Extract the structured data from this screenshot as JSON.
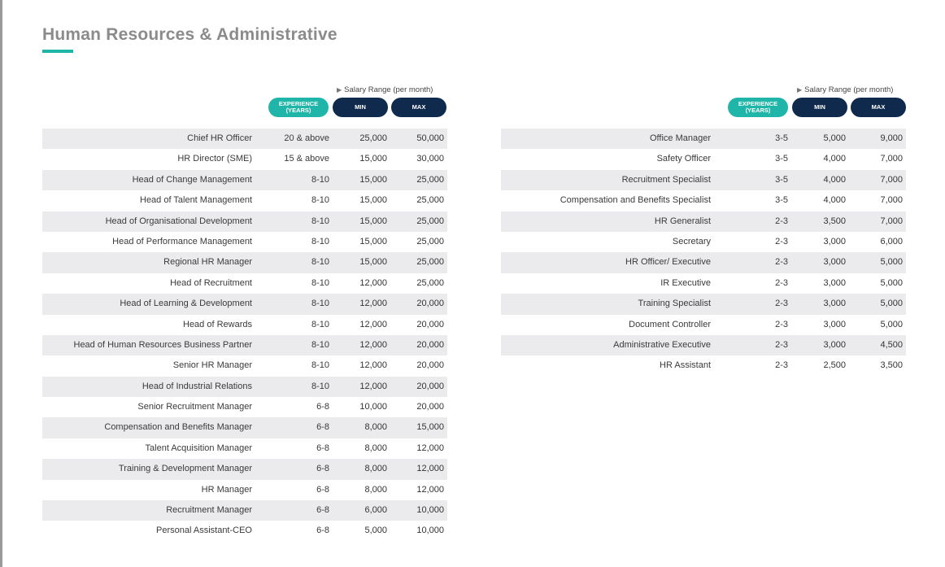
{
  "header": {
    "title": "Human Resources & Administrative"
  },
  "column_headers": {
    "salary_range": "Salary Range (per month)",
    "experience_line1": "EXPERIENCE",
    "experience_line2": "(YEARS)",
    "min": "MIN",
    "max": "MAX"
  },
  "colors": {
    "teal_accent": "#1fb5a8",
    "navy": "#102a4e",
    "row_shade": "#ebebed",
    "title_gray": "#8b8b8b"
  },
  "left_table": [
    {
      "role": "Chief HR Officer",
      "exp": "20 & above",
      "min": "25,000",
      "max": "50,000"
    },
    {
      "role": "HR Director (SME)",
      "exp": "15 & above",
      "min": "15,000",
      "max": "30,000"
    },
    {
      "role": "Head of Change Management",
      "exp": "8-10",
      "min": "15,000",
      "max": "25,000"
    },
    {
      "role": "Head of Talent Management",
      "exp": "8-10",
      "min": "15,000",
      "max": "25,000"
    },
    {
      "role": "Head of Organisational Development",
      "exp": "8-10",
      "min": "15,000",
      "max": "25,000"
    },
    {
      "role": "Head of Performance Management",
      "exp": "8-10",
      "min": "15,000",
      "max": "25,000"
    },
    {
      "role": "Regional HR Manager",
      "exp": "8-10",
      "min": "15,000",
      "max": "25,000"
    },
    {
      "role": "Head of Recruitment",
      "exp": "8-10",
      "min": "12,000",
      "max": "25,000"
    },
    {
      "role": "Head of Learning & Development",
      "exp": "8-10",
      "min": "12,000",
      "max": "20,000"
    },
    {
      "role": "Head of Rewards",
      "exp": "8-10",
      "min": "12,000",
      "max": "20,000"
    },
    {
      "role": "Head of Human Resources Business Partner",
      "exp": "8-10",
      "min": "12,000",
      "max": "20,000"
    },
    {
      "role": "Senior HR Manager",
      "exp": "8-10",
      "min": "12,000",
      "max": "20,000"
    },
    {
      "role": "Head of Industrial Relations",
      "exp": "8-10",
      "min": "12,000",
      "max": "20,000"
    },
    {
      "role": "Senior Recruitment Manager",
      "exp": "6-8",
      "min": "10,000",
      "max": "20,000"
    },
    {
      "role": "Compensation and Benefits Manager",
      "exp": "6-8",
      "min": "8,000",
      "max": "15,000"
    },
    {
      "role": "Talent Acquisition Manager",
      "exp": "6-8",
      "min": "8,000",
      "max": "12,000"
    },
    {
      "role": "Training & Development Manager",
      "exp": "6-8",
      "min": "8,000",
      "max": "12,000"
    },
    {
      "role": "HR Manager",
      "exp": "6-8",
      "min": "8,000",
      "max": "12,000"
    },
    {
      "role": "Recruitment Manager",
      "exp": "6-8",
      "min": "6,000",
      "max": "10,000"
    },
    {
      "role": "Personal Assistant-CEO",
      "exp": "6-8",
      "min": "5,000",
      "max": "10,000"
    }
  ],
  "right_table": [
    {
      "role": "Office Manager",
      "exp": "3-5",
      "min": "5,000",
      "max": "9,000"
    },
    {
      "role": "Safety Officer",
      "exp": "3-5",
      "min": "4,000",
      "max": "7,000"
    },
    {
      "role": "Recruitment Specialist",
      "exp": "3-5",
      "min": "4,000",
      "max": "7,000"
    },
    {
      "role": "Compensation and Benefits Specialist",
      "exp": "3-5",
      "min": "4,000",
      "max": "7,000"
    },
    {
      "role": "HR Generalist",
      "exp": "2-3",
      "min": "3,500",
      "max": "7,000"
    },
    {
      "role": "Secretary",
      "exp": "2-3",
      "min": "3,000",
      "max": "6,000"
    },
    {
      "role": "HR Officer/ Executive",
      "exp": "2-3",
      "min": "3,000",
      "max": "5,000"
    },
    {
      "role": "IR Executive",
      "exp": "2-3",
      "min": "3,000",
      "max": "5,000"
    },
    {
      "role": "Training Specialist",
      "exp": "2-3",
      "min": "3,000",
      "max": "5,000"
    },
    {
      "role": "Document Controller",
      "exp": "2-3",
      "min": "3,000",
      "max": "5,000"
    },
    {
      "role": "Administrative Executive",
      "exp": "2-3",
      "min": "3,000",
      "max": "4,500"
    },
    {
      "role": "HR Assistant",
      "exp": "2-3",
      "min": "2,500",
      "max": "3,500"
    }
  ]
}
